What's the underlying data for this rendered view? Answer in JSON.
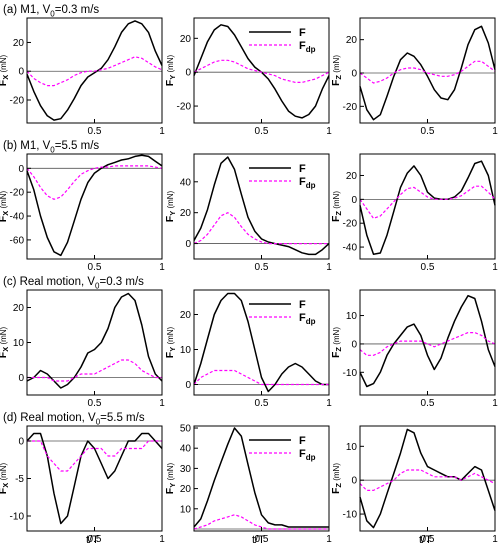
{
  "figure": {
    "row_titles": [
      {
        "prefix": "(a) M1, V",
        "sub": "0",
        "suffix": "=0.3 m/s"
      },
      {
        "prefix": "(b) M1, V",
        "sub": "0",
        "suffix": "=5.5 m/s"
      },
      {
        "prefix": "(c) Real motion, V",
        "sub": "0",
        "suffix": "=0.3 m/s"
      },
      {
        "prefix": "(d) Real motion, V",
        "sub": "0",
        "suffix": "=5.5 m/s"
      }
    ],
    "xlabel": "t/T",
    "colors": {
      "F": "#000000",
      "F_dp": "#ff00ff",
      "zero_line": "#555555",
      "frame": "#000000"
    }
  },
  "chart_data": [
    {
      "type": "line",
      "row": 0,
      "col": 0,
      "ylabel": "F",
      "ylabel_sub": "X",
      "ylabel_unit": "(mN)",
      "x": [
        0,
        0.05,
        0.1,
        0.15,
        0.2,
        0.25,
        0.3,
        0.35,
        0.4,
        0.45,
        0.5,
        0.55,
        0.6,
        0.65,
        0.7,
        0.75,
        0.8,
        0.85,
        0.9,
        0.95,
        1.0
      ],
      "xlim": [
        0,
        1
      ],
      "ylim": [
        -36,
        37
      ],
      "yticks": [
        -20,
        0,
        20
      ],
      "xticks": [
        0.5,
        1
      ],
      "xticklabels": [
        "0.5",
        "1"
      ],
      "legend": null,
      "series": [
        {
          "name": "F",
          "values": [
            -2,
            -14,
            -24,
            -31,
            -34,
            -33,
            -27,
            -19,
            -10,
            -4,
            -1,
            2,
            8,
            17,
            27,
            33,
            35,
            33,
            27,
            14,
            4
          ]
        },
        {
          "name": "F_dp",
          "values": [
            0,
            -5,
            -8,
            -10,
            -10,
            -8,
            -6,
            -3,
            -1,
            0,
            0,
            1,
            2,
            4,
            6,
            8,
            10,
            9,
            6,
            3,
            1
          ]
        }
      ]
    },
    {
      "type": "line",
      "row": 0,
      "col": 1,
      "ylabel": "F",
      "ylabel_sub": "Y",
      "ylabel_unit": "(mN)",
      "x": [
        0,
        0.05,
        0.1,
        0.15,
        0.2,
        0.25,
        0.3,
        0.35,
        0.4,
        0.45,
        0.5,
        0.55,
        0.6,
        0.65,
        0.7,
        0.75,
        0.8,
        0.85,
        0.9,
        0.95,
        1.0
      ],
      "xlim": [
        0,
        1
      ],
      "ylim": [
        -30,
        32
      ],
      "yticks": [
        -20,
        0,
        20
      ],
      "xticks": [
        0.5,
        1
      ],
      "xticklabels": [
        "0.5",
        "1"
      ],
      "legend": [
        "F",
        "F_dp"
      ],
      "legend_labels": {
        "main": "F",
        "sub": "dp"
      },
      "series": [
        {
          "name": "F",
          "values": [
            -2,
            8,
            18,
            25,
            28,
            27,
            22,
            15,
            8,
            3,
            0,
            -4,
            -10,
            -17,
            -23,
            -26,
            -27,
            -25,
            -20,
            -10,
            -2
          ]
        },
        {
          "name": "F_dp",
          "values": [
            0,
            2,
            4,
            6,
            7,
            7,
            6,
            4,
            2,
            1,
            0,
            -1,
            -2,
            -4,
            -5,
            -6,
            -6,
            -5,
            -4,
            -2,
            0
          ]
        }
      ]
    },
    {
      "type": "line",
      "row": 0,
      "col": 2,
      "ylabel": "F",
      "ylabel_sub": "Z",
      "ylabel_unit": "(mN)",
      "x": [
        0,
        0.05,
        0.1,
        0.15,
        0.2,
        0.25,
        0.3,
        0.35,
        0.4,
        0.45,
        0.5,
        0.55,
        0.6,
        0.65,
        0.7,
        0.75,
        0.8,
        0.85,
        0.9,
        0.95,
        1.0
      ],
      "xlim": [
        0,
        1
      ],
      "ylim": [
        -30,
        33
      ],
      "yticks": [
        -20,
        0,
        20
      ],
      "xticks": [
        0.5,
        1
      ],
      "xticklabels": [
        "0.5",
        "1"
      ],
      "legend": null,
      "series": [
        {
          "name": "F",
          "values": [
            -8,
            -22,
            -28,
            -25,
            -14,
            -2,
            8,
            12,
            10,
            5,
            -2,
            -10,
            -15,
            -16,
            -10,
            3,
            17,
            26,
            28,
            18,
            2
          ]
        },
        {
          "name": "F_dp",
          "values": [
            0,
            -3,
            -6,
            -5,
            -3,
            0,
            2,
            3,
            3,
            2,
            0,
            -1,
            -2,
            -2,
            -1,
            1,
            4,
            7,
            7,
            4,
            1
          ]
        }
      ]
    },
    {
      "type": "line",
      "row": 1,
      "col": 0,
      "ylabel": "F",
      "ylabel_sub": "X",
      "ylabel_unit": "(mN)",
      "x": [
        0,
        0.05,
        0.1,
        0.15,
        0.2,
        0.25,
        0.3,
        0.35,
        0.4,
        0.45,
        0.5,
        0.55,
        0.6,
        0.65,
        0.7,
        0.75,
        0.8,
        0.85,
        0.9,
        0.95,
        1.0
      ],
      "xlim": [
        0,
        1
      ],
      "ylim": [
        -76,
        12
      ],
      "yticks": [
        -60,
        -40,
        -20,
        0
      ],
      "xticks": [
        0.5,
        1
      ],
      "xticklabels": [
        "0.5",
        "1"
      ],
      "legend": null,
      "series": [
        {
          "name": "F",
          "values": [
            -2,
            -18,
            -40,
            -58,
            -70,
            -73,
            -62,
            -44,
            -26,
            -12,
            -4,
            0,
            3,
            5,
            7,
            8,
            10,
            11,
            10,
            6,
            2
          ]
        },
        {
          "name": "F_dp",
          "values": [
            0,
            -7,
            -16,
            -23,
            -26,
            -24,
            -18,
            -11,
            -5,
            -2,
            0,
            1,
            1,
            2,
            2,
            2,
            2,
            2,
            2,
            1,
            0
          ]
        }
      ]
    },
    {
      "type": "line",
      "row": 1,
      "col": 1,
      "ylabel": "F",
      "ylabel_sub": "Y",
      "ylabel_unit": "(mN)",
      "x": [
        0,
        0.05,
        0.1,
        0.15,
        0.2,
        0.25,
        0.3,
        0.35,
        0.4,
        0.45,
        0.5,
        0.55,
        0.6,
        0.65,
        0.7,
        0.75,
        0.8,
        0.85,
        0.9,
        0.95,
        1.0
      ],
      "xlim": [
        0,
        1
      ],
      "ylim": [
        -10,
        58
      ],
      "yticks": [
        0,
        20,
        40
      ],
      "xticks": [
        0.5,
        1
      ],
      "xticklabels": [
        "0.5",
        "1"
      ],
      "legend": [
        "F",
        "F_dp"
      ],
      "legend_labels": {
        "main": "F",
        "sub": "dp"
      },
      "series": [
        {
          "name": "F",
          "values": [
            2,
            10,
            22,
            38,
            52,
            56,
            48,
            32,
            17,
            8,
            3,
            1,
            0,
            -1,
            -2,
            -4,
            -6,
            -7,
            -7,
            -4,
            0
          ]
        },
        {
          "name": "F_dp",
          "values": [
            0,
            2,
            6,
            12,
            18,
            20,
            17,
            11,
            6,
            3,
            1,
            0,
            0,
            0,
            0,
            0,
            0,
            0,
            0,
            0,
            0
          ]
        }
      ]
    },
    {
      "type": "line",
      "row": 1,
      "col": 2,
      "ylabel": "F",
      "ylabel_sub": "Z",
      "ylabel_unit": "(mN)",
      "x": [
        0,
        0.05,
        0.1,
        0.15,
        0.2,
        0.25,
        0.3,
        0.35,
        0.4,
        0.45,
        0.5,
        0.55,
        0.6,
        0.65,
        0.7,
        0.75,
        0.8,
        0.85,
        0.9,
        0.95,
        1.0
      ],
      "xlim": [
        0,
        1
      ],
      "ylim": [
        -50,
        38
      ],
      "yticks": [
        -40,
        -20,
        0,
        20
      ],
      "xticks": [
        0.5,
        1
      ],
      "xticklabels": [
        "0.5",
        "1"
      ],
      "legend": null,
      "series": [
        {
          "name": "F",
          "values": [
            -5,
            -30,
            -46,
            -45,
            -30,
            -10,
            10,
            22,
            28,
            20,
            6,
            1,
            0,
            0,
            2,
            7,
            18,
            30,
            32,
            20,
            -5
          ]
        },
        {
          "name": "F_dp",
          "values": [
            0,
            -8,
            -16,
            -14,
            -8,
            -2,
            4,
            9,
            10,
            6,
            2,
            0,
            0,
            0,
            1,
            3,
            7,
            11,
            11,
            6,
            0
          ]
        }
      ]
    },
    {
      "type": "line",
      "row": 2,
      "col": 0,
      "ylabel": "F",
      "ylabel_sub": "X",
      "ylabel_unit": "(mN)",
      "x": [
        0,
        0.05,
        0.1,
        0.15,
        0.2,
        0.25,
        0.3,
        0.35,
        0.4,
        0.45,
        0.5,
        0.55,
        0.6,
        0.65,
        0.7,
        0.75,
        0.8,
        0.85,
        0.9,
        0.95,
        1.0
      ],
      "xlim": [
        0,
        1
      ],
      "ylim": [
        -5,
        25
      ],
      "yticks": [
        0,
        10,
        20
      ],
      "xticks": [
        0.5,
        1
      ],
      "xticklabels": [
        "0.5",
        "1"
      ],
      "legend": null,
      "series": [
        {
          "name": "F",
          "values": [
            -1,
            0,
            2,
            1,
            -1,
            -3,
            -2,
            0,
            3,
            7,
            8,
            10,
            14,
            20,
            23,
            24,
            22,
            15,
            6,
            1,
            -1
          ]
        },
        {
          "name": "F_dp",
          "values": [
            0,
            0,
            0,
            0,
            -1,
            -1,
            -1,
            0,
            1,
            1,
            1,
            2,
            3,
            4,
            5,
            5,
            4,
            2,
            1,
            0,
            0
          ]
        }
      ]
    },
    {
      "type": "line",
      "row": 2,
      "col": 1,
      "ylabel": "F",
      "ylabel_sub": "Y",
      "ylabel_unit": "(mN)",
      "x": [
        0,
        0.05,
        0.1,
        0.15,
        0.2,
        0.25,
        0.3,
        0.35,
        0.4,
        0.45,
        0.5,
        0.55,
        0.6,
        0.65,
        0.7,
        0.75,
        0.8,
        0.85,
        0.9,
        0.95,
        1.0
      ],
      "xlim": [
        0,
        1
      ],
      "ylim": [
        -3,
        27
      ],
      "yticks": [
        0,
        10,
        20
      ],
      "xticks": [
        0.5,
        1
      ],
      "xticklabels": [
        "0.5",
        "1"
      ],
      "legend": [
        "F",
        "F_dp"
      ],
      "legend_labels": {
        "main": "F",
        "sub": "dp"
      },
      "series": [
        {
          "name": "F",
          "values": [
            0,
            6,
            13,
            20,
            24,
            26,
            26,
            24,
            18,
            10,
            2,
            -2,
            0,
            3,
            5,
            6,
            5,
            3,
            1,
            0,
            0
          ]
        },
        {
          "name": "F_dp",
          "values": [
            0,
            2,
            3,
            4,
            4,
            4,
            4,
            3,
            2,
            1,
            0,
            0,
            0,
            0,
            0,
            0,
            0,
            0,
            0,
            0,
            0
          ]
        }
      ]
    },
    {
      "type": "line",
      "row": 2,
      "col": 2,
      "ylabel": "F",
      "ylabel_sub": "Z",
      "ylabel_unit": "(mN)",
      "x": [
        0,
        0.05,
        0.1,
        0.15,
        0.2,
        0.25,
        0.3,
        0.35,
        0.4,
        0.45,
        0.5,
        0.55,
        0.6,
        0.65,
        0.7,
        0.75,
        0.8,
        0.85,
        0.9,
        0.95,
        1.0
      ],
      "xlim": [
        0,
        1
      ],
      "ylim": [
        -18,
        19
      ],
      "yticks": [
        -10,
        0,
        10
      ],
      "xticks": [
        0.5,
        1
      ],
      "xticklabels": [
        "0.5",
        "1"
      ],
      "legend": null,
      "series": [
        {
          "name": "F",
          "values": [
            -10,
            -15,
            -14,
            -10,
            -4,
            0,
            3,
            6,
            7,
            3,
            -4,
            -9,
            -5,
            2,
            8,
            13,
            17,
            16,
            8,
            -2,
            -8
          ]
        },
        {
          "name": "F_dp",
          "values": [
            -2,
            -4,
            -4,
            -3,
            -1,
            0,
            1,
            1,
            1,
            1,
            0,
            -1,
            0,
            1,
            2,
            3,
            4,
            4,
            3,
            1,
            0
          ]
        }
      ]
    },
    {
      "type": "line",
      "row": 3,
      "col": 0,
      "ylabel": "F",
      "ylabel_sub": "X",
      "ylabel_unit": "(mN)",
      "x": [
        0,
        0.05,
        0.1,
        0.15,
        0.2,
        0.25,
        0.3,
        0.35,
        0.4,
        0.45,
        0.5,
        0.55,
        0.6,
        0.65,
        0.7,
        0.75,
        0.8,
        0.85,
        0.9,
        0.95,
        1.0
      ],
      "xlim": [
        0,
        1
      ],
      "ylim": [
        -12,
        2
      ],
      "yticks": [
        -10,
        -5,
        0
      ],
      "xticks": [
        0.5,
        1
      ],
      "xticklabels": [
        "0.5",
        "1"
      ],
      "legend": null,
      "series": [
        {
          "name": "F",
          "values": [
            0,
            1,
            1,
            -2,
            -7,
            -11,
            -10,
            -6,
            -2,
            0,
            -1,
            -3,
            -5,
            -4,
            -2,
            0,
            0,
            1,
            1,
            0,
            -1
          ]
        },
        {
          "name": "F_dp",
          "values": [
            0,
            0,
            0,
            -2,
            -3,
            -4,
            -4,
            -3,
            -2,
            -1,
            -1,
            -1,
            -2,
            -2,
            -1,
            -1,
            -1,
            -1,
            0,
            0,
            0
          ]
        }
      ]
    },
    {
      "type": "line",
      "row": 3,
      "col": 1,
      "ylabel": "F",
      "ylabel_sub": "Y",
      "ylabel_unit": "(mN)",
      "x": [
        0,
        0.05,
        0.1,
        0.15,
        0.2,
        0.25,
        0.3,
        0.35,
        0.4,
        0.45,
        0.5,
        0.55,
        0.6,
        0.65,
        0.7,
        0.75,
        0.8,
        0.85,
        0.9,
        0.95,
        1.0
      ],
      "xlim": [
        0,
        1
      ],
      "ylim": [
        -1,
        51
      ],
      "yticks": [
        10,
        20,
        30,
        40,
        50
      ],
      "xticks": [
        0.5,
        1
      ],
      "xticklabels": [
        "0.5",
        "1"
      ],
      "legend": [
        "F",
        "F_dp"
      ],
      "legend_labels": {
        "main": "F",
        "sub": "dp"
      },
      "series": [
        {
          "name": "F",
          "values": [
            1,
            5,
            14,
            24,
            33,
            42,
            50,
            46,
            32,
            18,
            7,
            3,
            2,
            2,
            1,
            1,
            1,
            1,
            1,
            1,
            1
          ]
        },
        {
          "name": "F_dp",
          "values": [
            0,
            1,
            2,
            4,
            5,
            6,
            7,
            6,
            4,
            2,
            1,
            0,
            0,
            0,
            0,
            0,
            0,
            0,
            0,
            0,
            0
          ]
        }
      ]
    },
    {
      "type": "line",
      "row": 3,
      "col": 2,
      "ylabel": "F",
      "ylabel_sub": "Z",
      "ylabel_unit": "(mN)",
      "x": [
        0,
        0.05,
        0.1,
        0.15,
        0.2,
        0.25,
        0.3,
        0.35,
        0.4,
        0.45,
        0.5,
        0.55,
        0.6,
        0.65,
        0.7,
        0.75,
        0.8,
        0.85,
        0.9,
        0.95,
        1.0
      ],
      "xlim": [
        0,
        1
      ],
      "ylim": [
        -15,
        16
      ],
      "yticks": [
        -10,
        0,
        10
      ],
      "xticks": [
        0.5,
        1
      ],
      "xticklabels": [
        "0.5",
        "1"
      ],
      "legend": null,
      "series": [
        {
          "name": "F",
          "values": [
            -5,
            -12,
            -14,
            -10,
            -4,
            2,
            8,
            15,
            14,
            8,
            4,
            3,
            2,
            1,
            1,
            0,
            2,
            4,
            3,
            -3,
            -9
          ]
        },
        {
          "name": "F_dp",
          "values": [
            -1,
            -3,
            -3,
            -2,
            -1,
            0,
            2,
            3,
            3,
            3,
            2,
            1,
            1,
            1,
            1,
            0,
            1,
            2,
            1,
            0,
            -1
          ]
        }
      ]
    }
  ]
}
